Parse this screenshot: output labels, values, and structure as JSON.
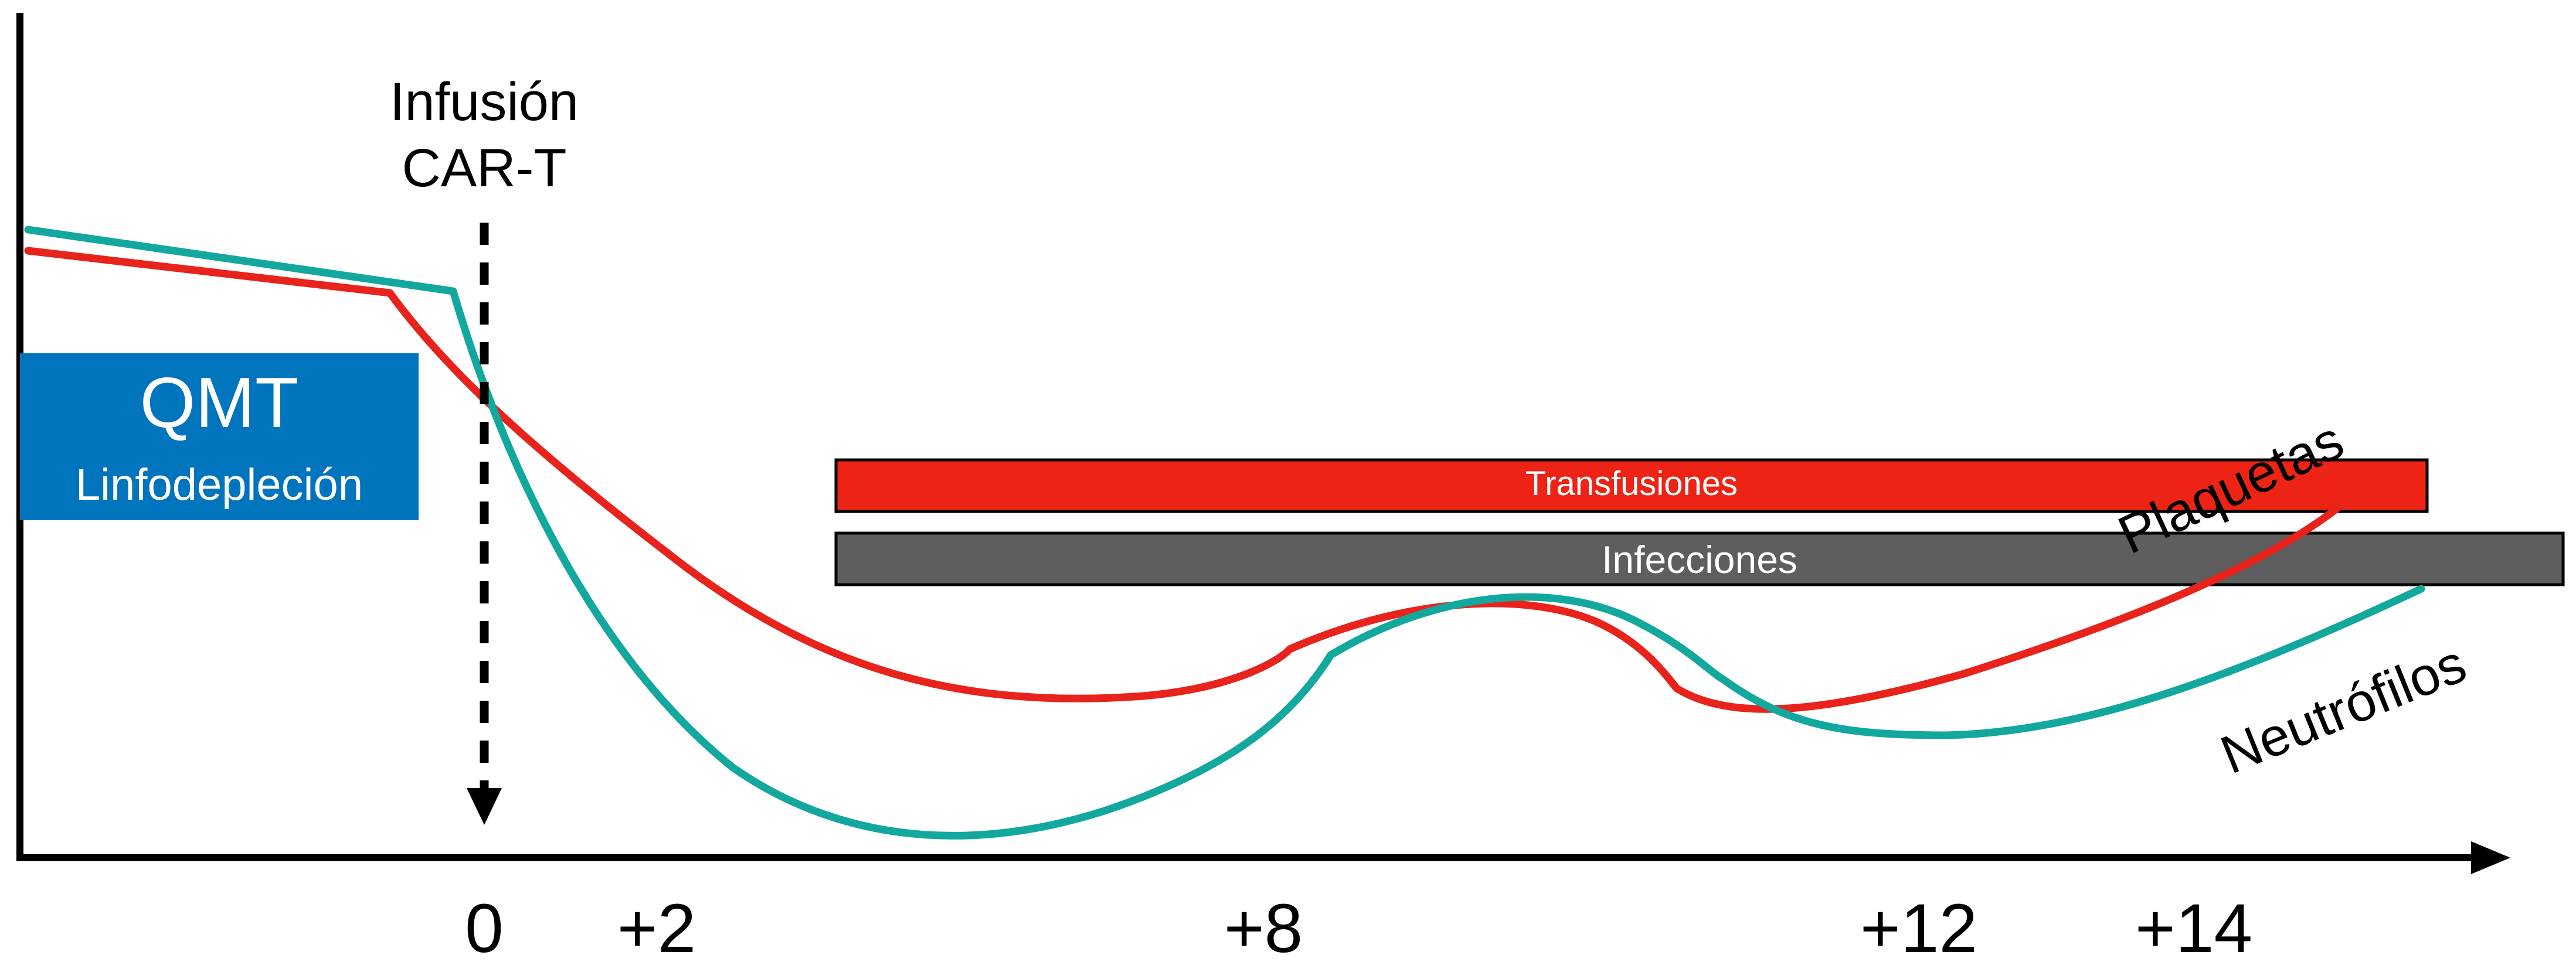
{
  "diagram": {
    "colors": {
      "neutrofilos": "#13A89E",
      "plaquetas": "#E8231B",
      "transfusiones_bar": "#EC2315",
      "infecciones_bar": "#5E5E5E",
      "qmt_box": "#0074BC",
      "axis": "#000000"
    },
    "qmt_box": {
      "title": "QMT",
      "subtitle": "Linfodepleción"
    },
    "infusion": {
      "line1": "Infusión",
      "line2": "CAR-T",
      "icon": "dashed-down-arrow-icon"
    },
    "bars": {
      "transfusiones": "Transfusiones",
      "infecciones": "Infecciones"
    },
    "curves": {
      "plaquetas": "Plaquetas",
      "neutrofilos": "Neutrófilos"
    },
    "x_ticks": [
      "0",
      "+2",
      "+8",
      "+12",
      "+14"
    ],
    "axes_icon": "x-axis-arrow-icon"
  }
}
